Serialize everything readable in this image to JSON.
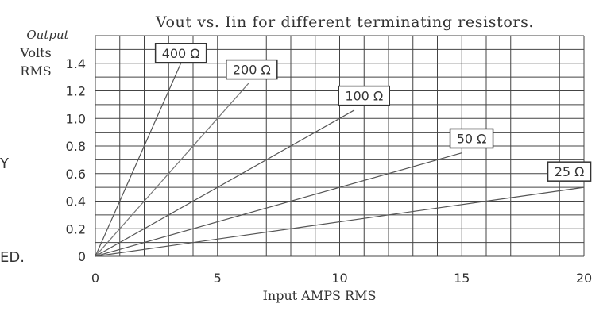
{
  "chart_data": {
    "type": "line",
    "title": "Vout vs. Iin for different terminating resistors.",
    "ylabel": {
      "line1": "Output",
      "line2": "Volts",
      "line3": "RMS"
    },
    "xlabel": "Input AMPS RMS",
    "xlim": [
      0,
      20
    ],
    "ylim": [
      0,
      1.6
    ],
    "x_ticks": [
      "0",
      "5",
      "10",
      "15",
      "20"
    ],
    "y_ticks": [
      "0",
      "0.2",
      "0.4",
      "0.6",
      "0.8",
      "1.0",
      "1.2",
      "1.4"
    ],
    "grid": true,
    "series": [
      {
        "name": "400 Ω",
        "color": "#555555",
        "x": [
          0,
          3.5
        ],
        "y": [
          0,
          1.4
        ]
      },
      {
        "name": "200 Ω",
        "color": "#777777",
        "x": [
          0,
          6.3
        ],
        "y": [
          0,
          1.26
        ]
      },
      {
        "name": "100 Ω",
        "color": "#555555",
        "x": [
          0,
          10.6
        ],
        "y": [
          0,
          1.06
        ]
      },
      {
        "name": "50 Ω",
        "color": "#555555",
        "x": [
          0,
          15
        ],
        "y": [
          0,
          0.75
        ]
      },
      {
        "name": "25 Ω",
        "color": "#555555",
        "x": [
          0,
          20
        ],
        "y": [
          0,
          0.5
        ]
      }
    ]
  },
  "side_fragments": [
    "Y",
    "ED."
  ]
}
